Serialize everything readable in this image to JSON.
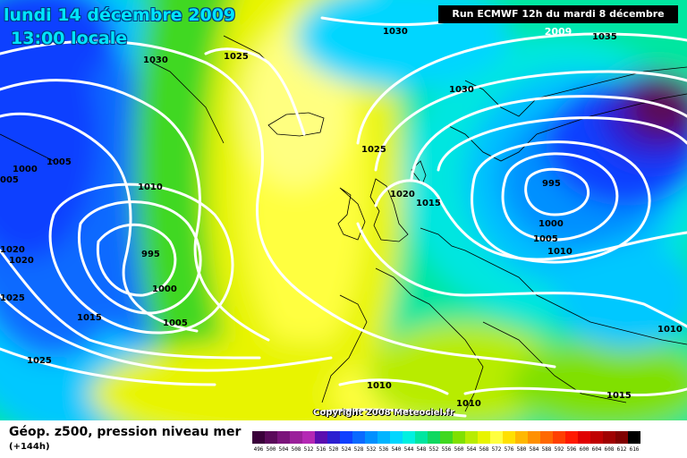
{
  "header": {
    "date": "lundi 14 décembre 2009",
    "time": "13:00 locale",
    "run": "Run ECMWF 12h du mardi 8 décembre 2009"
  },
  "copyright": "Copyright 2008 Meteociel.fr",
  "legend": {
    "title": "Géop. z500, pression niveau mer",
    "forecast": "(+144h)",
    "scale": [
      {
        "value": "496",
        "color": "#3a003a"
      },
      {
        "value": "500",
        "color": "#5a0a5a"
      },
      {
        "value": "504",
        "color": "#7a147a"
      },
      {
        "value": "508",
        "color": "#9a209a"
      },
      {
        "value": "512",
        "color": "#b428b4"
      },
      {
        "value": "516",
        "color": "#5b0fb0"
      },
      {
        "value": "520",
        "color": "#2d1fd0"
      },
      {
        "value": "524",
        "color": "#1040ff"
      },
      {
        "value": "528",
        "color": "#0a6aff"
      },
      {
        "value": "532",
        "color": "#0090ff"
      },
      {
        "value": "536",
        "color": "#00b4ff"
      },
      {
        "value": "540",
        "color": "#00d6ff"
      },
      {
        "value": "544",
        "color": "#00f0e0"
      },
      {
        "value": "548",
        "color": "#00e6a0"
      },
      {
        "value": "552",
        "color": "#10d860"
      },
      {
        "value": "556",
        "color": "#40d820"
      },
      {
        "value": "560",
        "color": "#80e000"
      },
      {
        "value": "564",
        "color": "#b8ec00"
      },
      {
        "value": "568",
        "color": "#e8f400"
      },
      {
        "value": "572",
        "color": "#ffff40"
      },
      {
        "value": "576",
        "color": "#ffe000"
      },
      {
        "value": "580",
        "color": "#ffb800"
      },
      {
        "value": "584",
        "color": "#ff9000"
      },
      {
        "value": "588",
        "color": "#ff6800"
      },
      {
        "value": "592",
        "color": "#ff4000"
      },
      {
        "value": "596",
        "color": "#ff1a00"
      },
      {
        "value": "600",
        "color": "#e00000"
      },
      {
        "value": "604",
        "color": "#c00000"
      },
      {
        "value": "608",
        "color": "#a00000"
      },
      {
        "value": "612",
        "color": "#800000"
      },
      {
        "value": "616",
        "color": "#000000"
      }
    ]
  },
  "isobars": [
    {
      "label": "1030"
    },
    {
      "label": "1025"
    },
    {
      "label": "1030"
    },
    {
      "label": "1035"
    },
    {
      "label": "1030"
    },
    {
      "label": "1000"
    },
    {
      "label": "1005"
    },
    {
      "label": "1010"
    },
    {
      "label": "1025"
    },
    {
      "label": "1020"
    },
    {
      "label": "1015"
    },
    {
      "label": "995"
    },
    {
      "label": "1000"
    },
    {
      "label": "1005"
    },
    {
      "label": "1010"
    },
    {
      "label": "995"
    },
    {
      "label": "1000"
    },
    {
      "label": "1005"
    },
    {
      "label": "1015"
    },
    {
      "label": "1020"
    },
    {
      "label": "1020"
    },
    {
      "label": "1025"
    },
    {
      "label": "1025"
    },
    {
      "label": "1010"
    },
    {
      "label": "1010"
    },
    {
      "label": "1010"
    },
    {
      "label": "1015"
    },
    {
      "label": "005"
    }
  ]
}
